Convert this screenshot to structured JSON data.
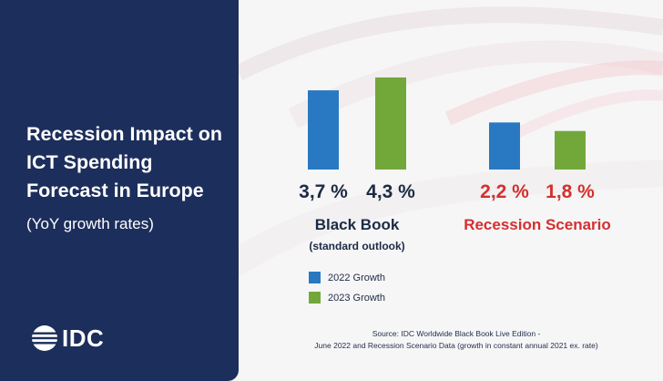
{
  "title": "Recession Impact on ICT Spending Forecast in Europe",
  "subtitle": "(YoY growth rates)",
  "logo_text": "IDC",
  "colors": {
    "panel": "#1c2e5b",
    "growth_2022": "#2979c2",
    "growth_2023": "#72a83a",
    "black_book_text": "#1c2b45",
    "recession_text": "#d4302f"
  },
  "chart_data": {
    "type": "bar",
    "title": "Recession Impact on ICT Spending Forecast in Europe",
    "subtitle": "(YoY growth rates)",
    "groups": [
      {
        "name": "Black Book",
        "subname": "(standard outlook)",
        "values": [
          3.7,
          4.3
        ],
        "labels": [
          "3,7 %",
          "4,3 %"
        ]
      },
      {
        "name": "Recession Scenario",
        "subname": "",
        "values": [
          2.2,
          1.8
        ],
        "labels": [
          "2,2 %",
          "1,8 %"
        ]
      }
    ],
    "series": [
      {
        "name": "2022 Growth"
      },
      {
        "name": "2023 Growth"
      }
    ],
    "ylim": [
      0,
      4.3
    ],
    "grid": false,
    "legend": "bottom"
  },
  "source_lines": [
    "Source: IDC Worldwide Black Book Live Edition -",
    "June 2022 and Recession Scenario Data (growth in constant annual 2021 ex. rate)"
  ]
}
